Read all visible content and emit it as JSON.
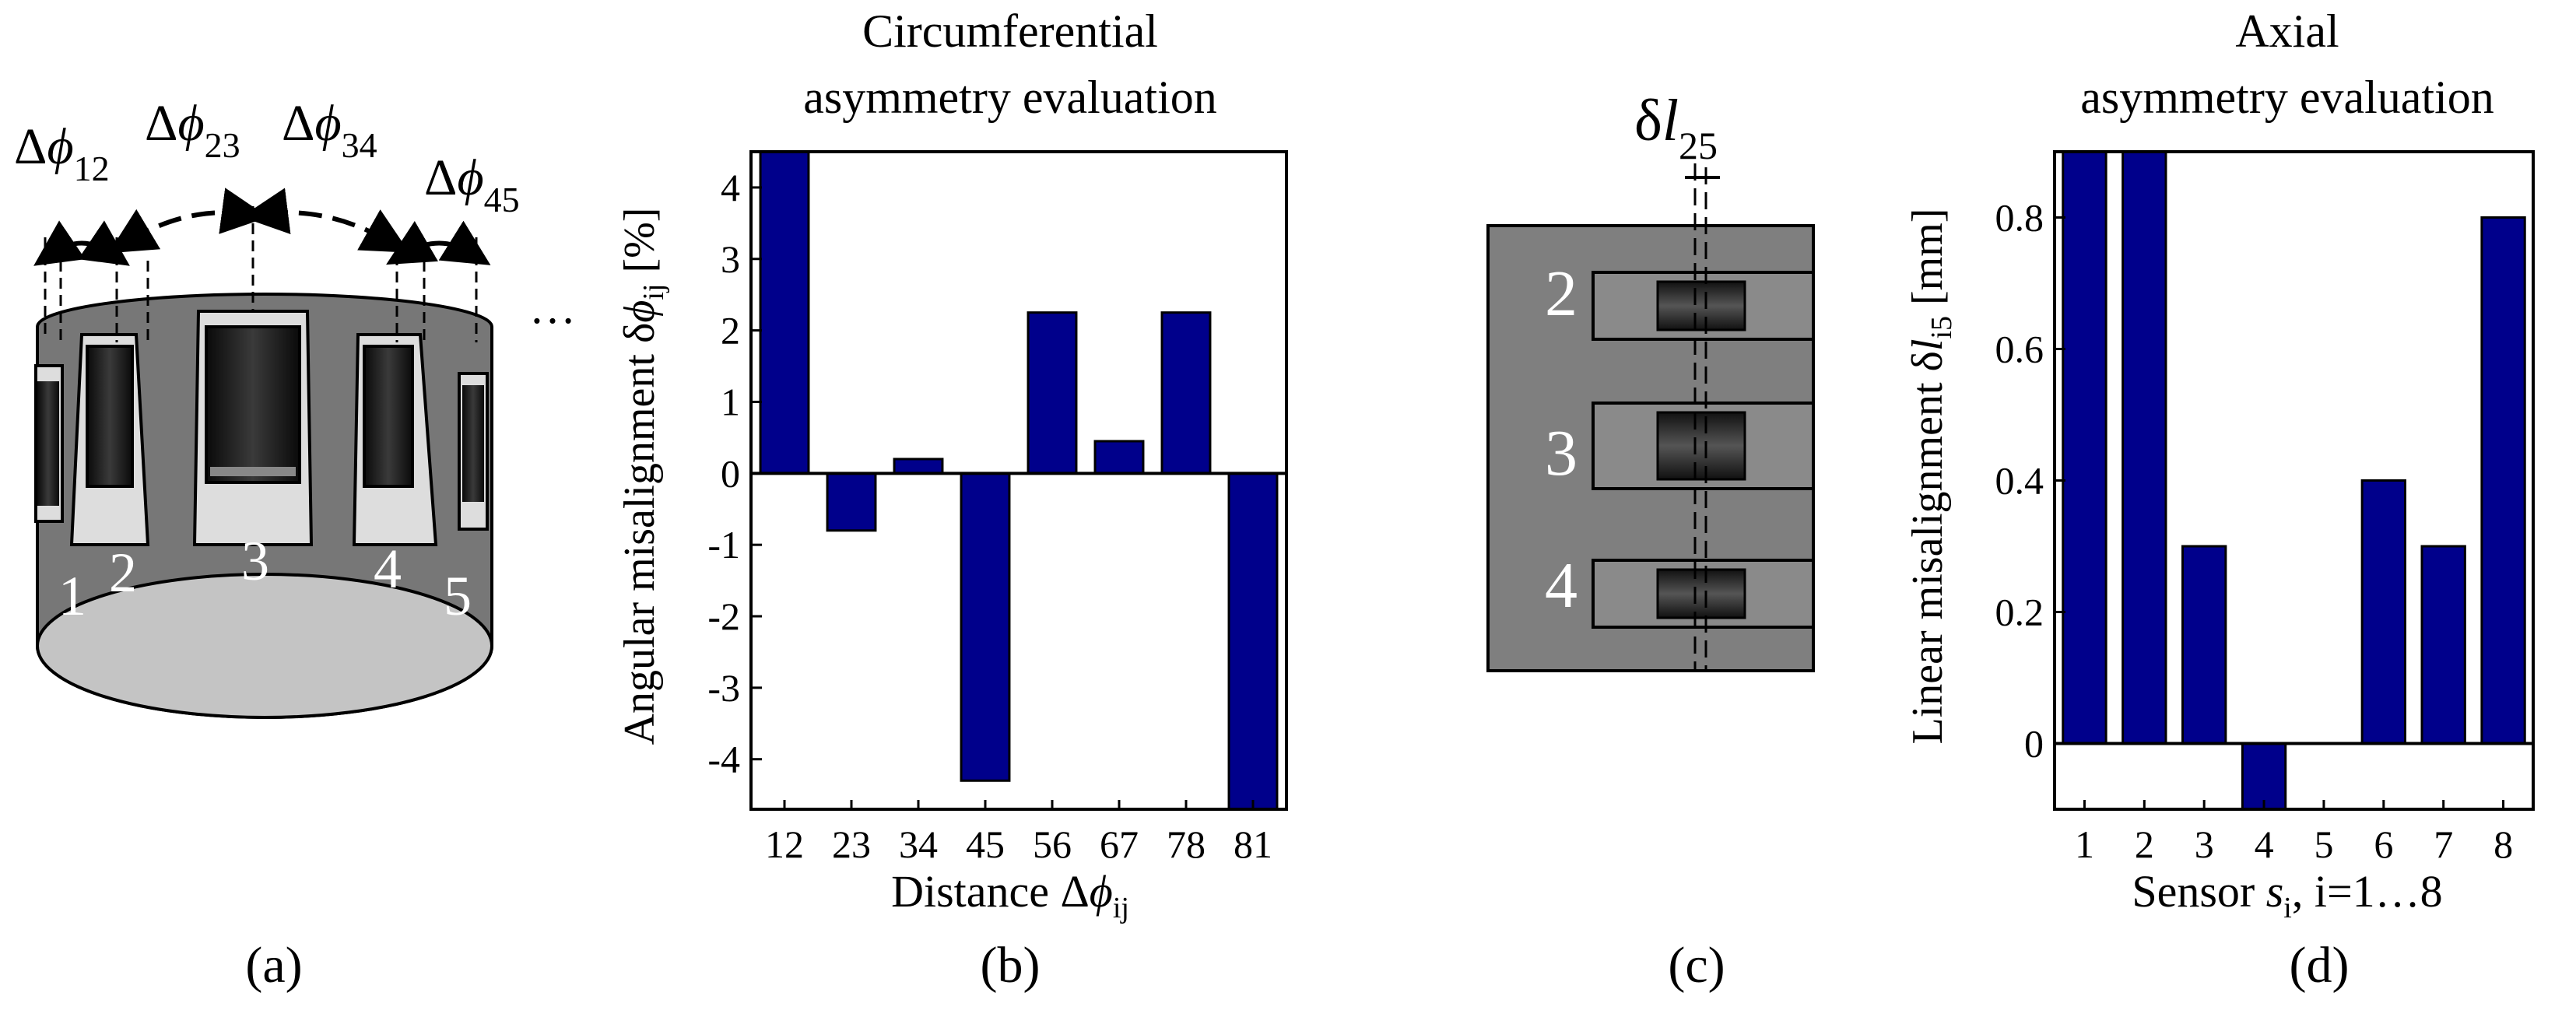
{
  "panels": {
    "a": {
      "caption": "(a)",
      "ellipsis": "…",
      "sensor_numbers": [
        "1",
        "2",
        "3",
        "4",
        "5"
      ],
      "angle_labels": [
        {
          "delta": "Δ",
          "phi": "ϕ",
          "sub": "12"
        },
        {
          "delta": "Δ",
          "phi": "ϕ",
          "sub": "23"
        },
        {
          "delta": "Δ",
          "phi": "ϕ",
          "sub": "34"
        },
        {
          "delta": "Δ",
          "phi": "ϕ",
          "sub": "45"
        }
      ]
    },
    "b": {
      "caption": "(b)"
    },
    "c": {
      "caption": "(c)",
      "label_main": "δ",
      "label_var": "l",
      "label_sub": "25",
      "sensor_numbers": [
        "2",
        "3",
        "4"
      ]
    },
    "d": {
      "caption": "(d)"
    }
  },
  "chart_data": [
    {
      "id": "b",
      "type": "bar",
      "title": [
        "Circumferential",
        "asymmetry evaluation"
      ],
      "categories": [
        "12",
        "23",
        "34",
        "45",
        "56",
        "67",
        "78",
        "81"
      ],
      "values": [
        4.5,
        -0.8,
        0.2,
        -4.3,
        2.25,
        0.45,
        2.25,
        -4.7
      ],
      "ylim": [
        -4.7,
        4.5
      ],
      "yticks": [
        "4",
        "3",
        "2",
        "1",
        "0",
        "-1",
        "-2",
        "-3",
        "-4"
      ],
      "ytick_values": [
        4,
        3,
        2,
        1,
        0,
        -1,
        -2,
        -3,
        -4
      ],
      "xlabel": {
        "main": "Distance Δ",
        "var": "ϕ",
        "sub": "ij"
      },
      "ylabel": {
        "main": "Angular misalignment δ",
        "var": "ϕ",
        "sub": "ij",
        "unit": " [%]"
      },
      "bar_color": "#00008B"
    },
    {
      "id": "d",
      "type": "bar",
      "title": [
        "Axial",
        "asymmetry evaluation"
      ],
      "categories": [
        "1",
        "2",
        "3",
        "4",
        "5",
        "6",
        "7",
        "8"
      ],
      "values": [
        0.9,
        0.9,
        0.3,
        -0.1,
        0.0,
        0.4,
        0.3,
        0.8
      ],
      "ylim": [
        -0.1,
        0.9
      ],
      "yticks": [
        "0.8",
        "0.6",
        "0.4",
        "0.2",
        "0"
      ],
      "ytick_values": [
        0.8,
        0.6,
        0.4,
        0.2,
        0
      ],
      "xlabel": {
        "main": "Sensor ",
        "var": "s",
        "sub": "i",
        "tail": ", i=1…8"
      },
      "ylabel": {
        "main": "Linear misalignment δ",
        "var": "l",
        "sub": "i5",
        "unit": " [mm]"
      },
      "bar_color": "#00008B"
    }
  ]
}
